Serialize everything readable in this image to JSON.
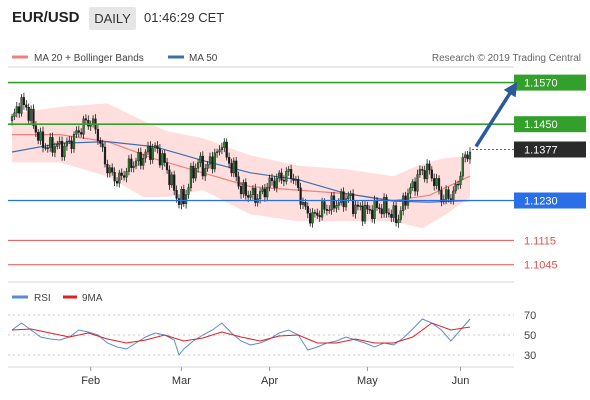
{
  "header": {
    "pair": "EUR/USD",
    "timeframe": "DAILY",
    "time": "01:46:29 CET"
  },
  "legend": {
    "bollinger": "MA 20 + Bollinger Bands",
    "ma50": "MA 50",
    "copyright": "Research © 2019 Trading Central"
  },
  "rsi_legend": {
    "rsi": "RSI",
    "ma9": "9MA"
  },
  "colors": {
    "candle": "#2e7d32",
    "band": "#ffcccc",
    "ma20": "#f08080",
    "ma50": "#3a6fb0",
    "resistance": "#33a02c",
    "support": "#2a6ee8",
    "target": "#e05050",
    "arrow": "#2b5a9b",
    "rsi": "#5b8bd6",
    "rsi_ma": "#e02020"
  },
  "chart_data": [
    {
      "type": "candlestick",
      "xlabel": "",
      "ylabel": "",
      "ylim": [
        1.0995,
        1.1615
      ],
      "x_ticks": [
        "Feb",
        "Mar",
        "Apr",
        "May",
        "Jun"
      ],
      "current_price": 1.1377,
      "levels": [
        {
          "label": "1.1570",
          "value": 1.157,
          "kind": "resistance"
        },
        {
          "label": "1.1450",
          "value": 1.145,
          "kind": "resistance"
        },
        {
          "label": "1.1377",
          "value": 1.1377,
          "kind": "current"
        },
        {
          "label": "1.1230",
          "value": 1.123,
          "kind": "support"
        },
        {
          "label": "1.1115",
          "value": 1.1115,
          "kind": "target"
        },
        {
          "label": "1.1045",
          "value": 1.1045,
          "kind": "target"
        }
      ],
      "close_path": [
        [
          0,
          1.146
        ],
        [
          3,
          1.151
        ],
        [
          6,
          1.15
        ],
        [
          9,
          1.145
        ],
        [
          12,
          1.14
        ],
        [
          15,
          1.1385
        ],
        [
          18,
          1.139
        ],
        [
          21,
          1.138
        ],
        [
          24,
          1.1395
        ],
        [
          27,
          1.142
        ],
        [
          30,
          1.145
        ],
        [
          33,
          1.146
        ],
        [
          36,
          1.142
        ],
        [
          39,
          1.134
        ],
        [
          42,
          1.13
        ],
        [
          45,
          1.129
        ],
        [
          48,
          1.132
        ],
        [
          51,
          1.134
        ],
        [
          54,
          1.135
        ],
        [
          57,
          1.137
        ],
        [
          60,
          1.138
        ],
        [
          63,
          1.135
        ],
        [
          66,
          1.13
        ],
        [
          69,
          1.124
        ],
        [
          72,
          1.123
        ],
        [
          75,
          1.13
        ],
        [
          78,
          1.134
        ],
        [
          81,
          1.132
        ],
        [
          84,
          1.135
        ],
        [
          87,
          1.137
        ],
        [
          88,
          1.141
        ],
        [
          90,
          1.135
        ],
        [
          93,
          1.132
        ],
        [
          96,
          1.126
        ],
        [
          99,
          1.125
        ],
        [
          102,
          1.124
        ],
        [
          105,
          1.125
        ],
        [
          108,
          1.128
        ],
        [
          111,
          1.129
        ],
        [
          114,
          1.13
        ],
        [
          117,
          1.131
        ],
        [
          120,
          1.126
        ],
        [
          123,
          1.12
        ],
        [
          126,
          1.118
        ],
        [
          129,
          1.12
        ],
        [
          132,
          1.121
        ],
        [
          135,
          1.122
        ],
        [
          138,
          1.123
        ],
        [
          141,
          1.124
        ],
        [
          144,
          1.121
        ],
        [
          147,
          1.12
        ],
        [
          150,
          1.12
        ],
        [
          153,
          1.121
        ],
        [
          156,
          1.121
        ],
        [
          159,
          1.119
        ],
        [
          162,
          1.118
        ],
        [
          165,
          1.124
        ],
        [
          168,
          1.127
        ],
        [
          171,
          1.131
        ],
        [
          174,
          1.132
        ],
        [
          177,
          1.129
        ],
        [
          180,
          1.124
        ],
        [
          183,
          1.124
        ],
        [
          186,
          1.126
        ],
        [
          189,
          1.134
        ],
        [
          192,
          1.1377
        ]
      ],
      "ma20_path": [
        [
          0,
          1.142
        ],
        [
          20,
          1.142
        ],
        [
          40,
          1.14
        ],
        [
          60,
          1.135
        ],
        [
          80,
          1.131
        ],
        [
          100,
          1.127
        ],
        [
          120,
          1.126
        ],
        [
          140,
          1.125
        ],
        [
          160,
          1.123
        ],
        [
          175,
          1.1245
        ],
        [
          192,
          1.13
        ]
      ],
      "ma50_path": [
        [
          0,
          1.137
        ],
        [
          20,
          1.1395
        ],
        [
          40,
          1.14
        ],
        [
          60,
          1.1385
        ],
        [
          80,
          1.1345
        ],
        [
          100,
          1.131
        ],
        [
          120,
          1.129
        ],
        [
          140,
          1.125
        ],
        [
          160,
          1.1228
        ],
        [
          175,
          1.1225
        ],
        [
          192,
          1.123
        ]
      ],
      "band_upper_path": [
        [
          0,
          1.148
        ],
        [
          20,
          1.15
        ],
        [
          40,
          1.151
        ],
        [
          55,
          1.146
        ],
        [
          65,
          1.143
        ],
        [
          80,
          1.141
        ],
        [
          100,
          1.136
        ],
        [
          120,
          1.133
        ],
        [
          140,
          1.132
        ],
        [
          160,
          1.13
        ],
        [
          170,
          1.133
        ],
        [
          180,
          1.135
        ],
        [
          192,
          1.136
        ]
      ],
      "band_lower_path": [
        [
          0,
          1.134
        ],
        [
          20,
          1.134
        ],
        [
          40,
          1.13
        ],
        [
          55,
          1.124
        ],
        [
          65,
          1.124
        ],
        [
          80,
          1.126
        ],
        [
          100,
          1.119
        ],
        [
          120,
          1.117
        ],
        [
          140,
          1.117
        ],
        [
          160,
          1.117
        ],
        [
          172,
          1.115
        ],
        [
          182,
          1.119
        ],
        [
          192,
          1.124
        ]
      ],
      "projection": [
        [
          192,
          1.1377
        ],
        [
          210,
          1.157
        ]
      ]
    },
    {
      "type": "line",
      "title": "",
      "ylim": [
        20,
        75
      ],
      "y_ticks": [
        "70",
        "50",
        "30"
      ],
      "series": [
        {
          "name": "RSI",
          "points": [
            [
              0,
              55
            ],
            [
              4,
              62
            ],
            [
              8,
              55
            ],
            [
              12,
              48
            ],
            [
              16,
              46
            ],
            [
              20,
              45
            ],
            [
              24,
              48
            ],
            [
              28,
              55
            ],
            [
              32,
              53
            ],
            [
              36,
              50
            ],
            [
              40,
              42
            ],
            [
              44,
              38
            ],
            [
              48,
              36
            ],
            [
              52,
              42
            ],
            [
              56,
              48
            ],
            [
              60,
              52
            ],
            [
              64,
              50
            ],
            [
              68,
              45
            ],
            [
              70,
              30
            ],
            [
              72,
              36
            ],
            [
              76,
              44
            ],
            [
              80,
              50
            ],
            [
              84,
              55
            ],
            [
              88,
              62
            ],
            [
              92,
              52
            ],
            [
              96,
              44
            ],
            [
              100,
              40
            ],
            [
              104,
              42
            ],
            [
              108,
              46
            ],
            [
              112,
              52
            ],
            [
              116,
              55
            ],
            [
              120,
              50
            ],
            [
              124,
              35
            ],
            [
              128,
              38
            ],
            [
              132,
              42
            ],
            [
              136,
              44
            ],
            [
              140,
              48
            ],
            [
              144,
              45
            ],
            [
              148,
              42
            ],
            [
              152,
              38
            ],
            [
              156,
              42
            ],
            [
              160,
              40
            ],
            [
              164,
              47
            ],
            [
              168,
              56
            ],
            [
              172,
              66
            ],
            [
              176,
              62
            ],
            [
              180,
              55
            ],
            [
              184,
              44
            ],
            [
              188,
              55
            ],
            [
              192,
              66
            ]
          ]
        },
        {
          "name": "9MA",
          "points": [
            [
              0,
              55
            ],
            [
              8,
              56
            ],
            [
              16,
              52
            ],
            [
              24,
              48
            ],
            [
              32,
              52
            ],
            [
              40,
              46
            ],
            [
              48,
              42
            ],
            [
              56,
              45
            ],
            [
              64,
              50
            ],
            [
              72,
              44
            ],
            [
              80,
              47
            ],
            [
              88,
              53
            ],
            [
              96,
              48
            ],
            [
              104,
              44
            ],
            [
              112,
              49
            ],
            [
              120,
              50
            ],
            [
              128,
              42
            ],
            [
              136,
              42
            ],
            [
              144,
              46
            ],
            [
              152,
              42
            ],
            [
              160,
              42
            ],
            [
              168,
              48
            ],
            [
              176,
              62
            ],
            [
              184,
              55
            ],
            [
              192,
              58
            ]
          ]
        }
      ]
    }
  ]
}
